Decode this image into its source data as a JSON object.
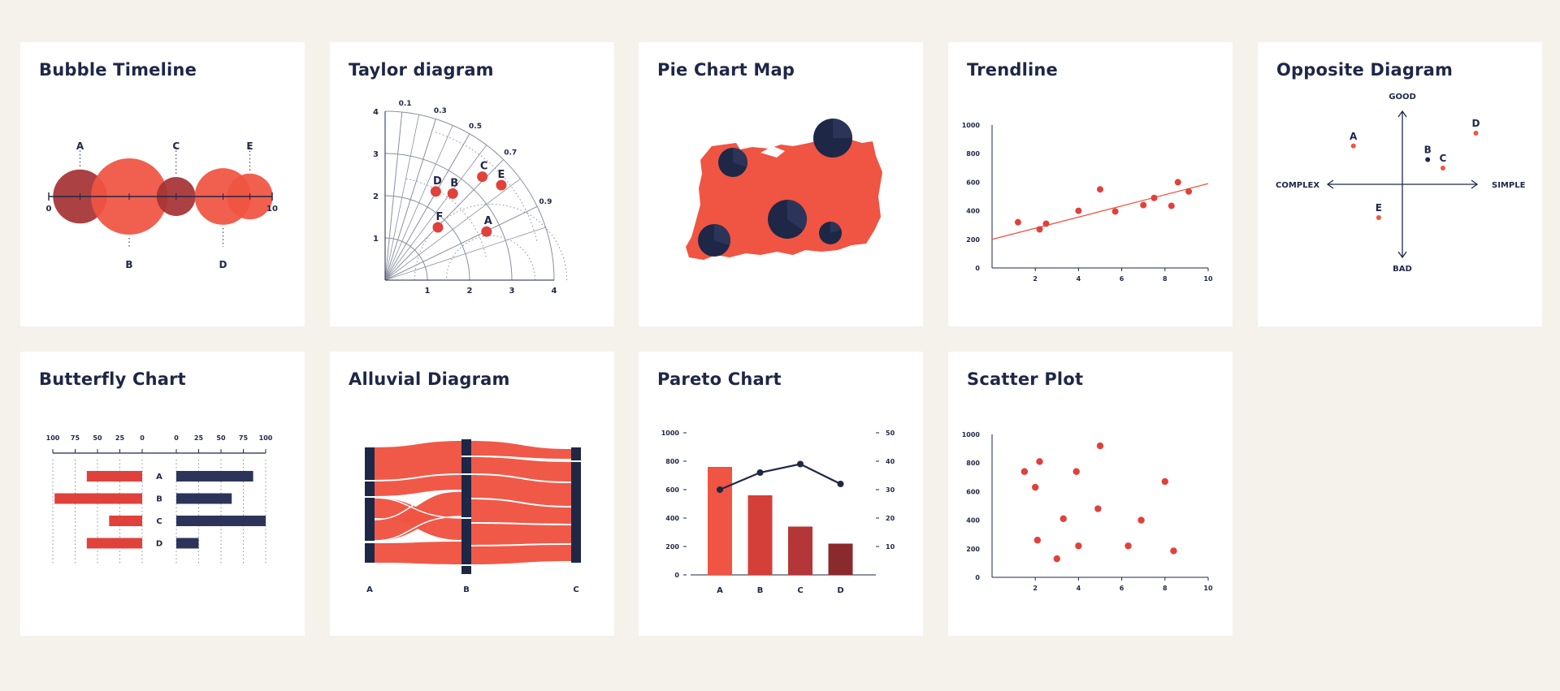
{
  "colors": {
    "background": "#f5f1eb",
    "card": "#ffffff",
    "navy": "#1e2746",
    "red": "#f05442",
    "red_mid": "#d53f3a",
    "red_dark": "#a63335",
    "maroon": "#8a2a2e",
    "grid": "#8a8fa0"
  },
  "cards": [
    {
      "title": "Bubble Timeline"
    },
    {
      "title": "Taylor diagram"
    },
    {
      "title": "Pie Chart Map"
    },
    {
      "title": "Trendline"
    },
    {
      "title": "Opposite Diagram"
    },
    {
      "title": "Butterfly Chart"
    },
    {
      "title": "Alluvial Diagram"
    },
    {
      "title": "Pareto Chart"
    },
    {
      "title": "Scatter Plot"
    }
  ],
  "chart_data": [
    {
      "type": "bubble-timeline",
      "x_range": [
        0,
        10
      ],
      "x_tick_labels": [
        "0",
        "10"
      ],
      "bubbles": [
        {
          "label": "A",
          "x": 1.4,
          "size": 0.5,
          "label_pos": "top",
          "color": "#a63335"
        },
        {
          "label": "B",
          "x": 3.6,
          "size": 1.0,
          "label_pos": "bottom",
          "color": "#f05442"
        },
        {
          "label": "C",
          "x": 5.7,
          "size": 0.26,
          "label_pos": "top",
          "color": "#a63335"
        },
        {
          "label": "D",
          "x": 7.8,
          "size": 0.55,
          "label_pos": "bottom",
          "color": "#f05442"
        },
        {
          "label": "E",
          "x": 9.0,
          "size": 0.36,
          "label_pos": "top",
          "color": "#f05442"
        }
      ]
    },
    {
      "type": "taylor",
      "r_max": 4,
      "radial_ticks": [
        "1",
        "2",
        "3",
        "4"
      ],
      "correlation_labels": [
        "0.1",
        "0.3",
        "0.5",
        "0.7",
        "0.9"
      ],
      "correlations": [
        0.1,
        0.3,
        0.5,
        0.7,
        0.9
      ],
      "points": [
        {
          "label": "A",
          "x": 2.4,
          "y": 1.15
        },
        {
          "label": "B",
          "x": 1.6,
          "y": 2.05
        },
        {
          "label": "C",
          "x": 2.3,
          "y": 2.45
        },
        {
          "label": "D",
          "x": 1.2,
          "y": 2.1
        },
        {
          "label": "E",
          "x": 2.75,
          "y": 2.25
        },
        {
          "label": "F",
          "x": 1.25,
          "y": 1.25
        }
      ]
    },
    {
      "type": "pie-map",
      "pies": [
        {
          "value": [
            0.3,
            0.7
          ]
        },
        {
          "value": [
            0.25,
            0.75
          ]
        },
        {
          "value": [
            0.35,
            0.65
          ]
        },
        {
          "value": [
            0.3,
            0.7
          ]
        },
        {
          "value": [
            0.2,
            0.8
          ]
        }
      ]
    },
    {
      "type": "scatter-trendline",
      "x_range": [
        0,
        10
      ],
      "y_range": [
        0,
        1000
      ],
      "x_ticks": [
        "2",
        "4",
        "6",
        "8",
        "10"
      ],
      "y_ticks": [
        "0",
        "200",
        "400",
        "600",
        "800",
        "1000"
      ],
      "points": [
        [
          1.2,
          320
        ],
        [
          2.2,
          270
        ],
        [
          2.5,
          310
        ],
        [
          4.0,
          400
        ],
        [
          5.0,
          550
        ],
        [
          5.7,
          395
        ],
        [
          7.0,
          440
        ],
        [
          7.5,
          490
        ],
        [
          8.3,
          435
        ],
        [
          8.6,
          600
        ],
        [
          9.1,
          535
        ]
      ],
      "trend": [
        [
          0,
          200
        ],
        [
          10,
          590
        ]
      ]
    },
    {
      "type": "opposite-diagram",
      "axis_labels": {
        "top": "GOOD",
        "bottom": "BAD",
        "left": "COMPLEX",
        "right": "SIMPLE"
      },
      "points": [
        {
          "label": "A",
          "x": -0.58,
          "y": 0.45,
          "color": "#f05442"
        },
        {
          "label": "B",
          "x": 0.3,
          "y": 0.29,
          "color": "#1e2746"
        },
        {
          "label": "C",
          "x": 0.48,
          "y": 0.19,
          "color": "#f05442"
        },
        {
          "label": "D",
          "x": 0.87,
          "y": 0.6,
          "color": "#f05442"
        },
        {
          "label": "E",
          "x": -0.28,
          "y": -0.39,
          "color": "#f05442"
        }
      ]
    },
    {
      "type": "butterfly",
      "axis_range": [
        0,
        100
      ],
      "left_tick_labels": [
        "100",
        "75",
        "50",
        "25",
        "0"
      ],
      "right_tick_labels": [
        "0",
        "25",
        "50",
        "75",
        "100"
      ],
      "categories": [
        "A",
        "B",
        "C",
        "D"
      ],
      "left_values": [
        62,
        98,
        37,
        62
      ],
      "right_values": [
        86,
        62,
        100,
        25
      ]
    },
    {
      "type": "alluvial",
      "stages": [
        "A",
        "B",
        "C"
      ]
    },
    {
      "type": "pareto",
      "categories": [
        "A",
        "B",
        "C",
        "D"
      ],
      "bar_values": [
        760,
        560,
        340,
        220
      ],
      "line_values": [
        30,
        36,
        39,
        32
      ],
      "y_left": [
        0,
        1000
      ],
      "y_right": [
        0,
        50
      ],
      "y_left_ticks": [
        "0",
        "200",
        "400",
        "600",
        "800",
        "1000"
      ],
      "y_right_ticks": [
        "10",
        "20",
        "30",
        "40",
        "50"
      ],
      "bar_colors": [
        "#f05442",
        "#d53f3a",
        "#b53638",
        "#8a2a2e"
      ]
    },
    {
      "type": "scatter",
      "x_range": [
        0,
        10
      ],
      "y_range": [
        0,
        1000
      ],
      "x_ticks": [
        "2",
        "4",
        "6",
        "8",
        "10"
      ],
      "y_ticks": [
        "0",
        "200",
        "400",
        "600",
        "800",
        "1000"
      ],
      "points": [
        [
          1.5,
          740
        ],
        [
          2.0,
          630
        ],
        [
          2.2,
          810
        ],
        [
          2.1,
          260
        ],
        [
          3.0,
          130
        ],
        [
          3.3,
          410
        ],
        [
          3.9,
          740
        ],
        [
          4.0,
          220
        ],
        [
          4.9,
          480
        ],
        [
          5.0,
          920
        ],
        [
          6.3,
          220
        ],
        [
          6.9,
          400
        ],
        [
          8.0,
          670
        ],
        [
          8.4,
          185
        ]
      ]
    }
  ]
}
